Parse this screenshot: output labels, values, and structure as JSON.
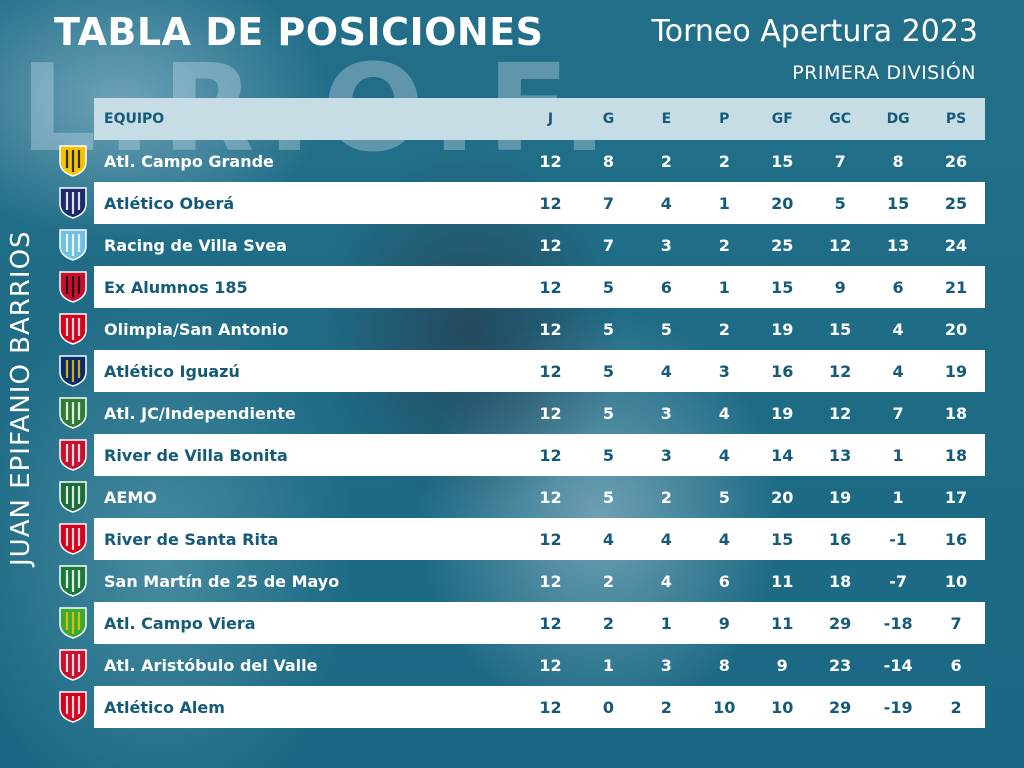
{
  "header": {
    "title": "TABLA DE POSICIONES",
    "tournament": "Torneo Apertura 2023",
    "division": "PRIMERA DIVISIÓN",
    "side_name": "JUAN EPIFANIO BARRIOS",
    "background_text": "L.R.O.F."
  },
  "columns": [
    "EQUIPO",
    "J",
    "G",
    "E",
    "P",
    "GF",
    "GC",
    "DG",
    "PS"
  ],
  "rows": [
    {
      "team": "Atl. Campo Grande",
      "J": "12",
      "G": "8",
      "E": "2",
      "P": "2",
      "GF": "15",
      "GC": "7",
      "DG": "8",
      "PS": "26",
      "crest_colors": [
        "#f2c500",
        "#111111"
      ],
      "crest_icon": "shield-icon"
    },
    {
      "team": "Atlético Oberá",
      "J": "12",
      "G": "7",
      "E": "4",
      "P": "1",
      "GF": "20",
      "GC": "5",
      "DG": "15",
      "PS": "25",
      "crest_colors": [
        "#1a2a6c",
        "#ffffff"
      ],
      "crest_icon": "shield-icon"
    },
    {
      "team": "Racing de Villa Svea",
      "J": "12",
      "G": "7",
      "E": "3",
      "P": "2",
      "GF": "25",
      "GC": "12",
      "DG": "13",
      "PS": "24",
      "crest_colors": [
        "#6ec1e4",
        "#ffffff"
      ],
      "crest_icon": "shield-icon"
    },
    {
      "team": "Ex Alumnos 185",
      "J": "12",
      "G": "5",
      "E": "6",
      "P": "1",
      "GF": "15",
      "GC": "9",
      "DG": "6",
      "PS": "21",
      "crest_colors": [
        "#c8102e",
        "#111111"
      ],
      "crest_icon": "shield-icon"
    },
    {
      "team": "Olimpia/San Antonio",
      "J": "12",
      "G": "5",
      "E": "5",
      "P": "2",
      "GF": "19",
      "GC": "15",
      "DG": "4",
      "PS": "20",
      "crest_colors": [
        "#d6001c",
        "#ffffff"
      ],
      "crest_icon": "shield-icon"
    },
    {
      "team": "Atlético Iguazú",
      "J": "12",
      "G": "5",
      "E": "4",
      "P": "3",
      "GF": "16",
      "GC": "12",
      "DG": "4",
      "PS": "19",
      "crest_colors": [
        "#0a2a6b",
        "#f2c500"
      ],
      "crest_icon": "shield-icon"
    },
    {
      "team": "Atl. JC/Independiente",
      "J": "12",
      "G": "5",
      "E": "3",
      "P": "4",
      "GF": "19",
      "GC": "12",
      "DG": "7",
      "PS": "18",
      "crest_colors": [
        "#2e7d32",
        "#ffffff"
      ],
      "crest_icon": "shield-icon"
    },
    {
      "team": "River de Villa Bonita",
      "J": "12",
      "G": "5",
      "E": "3",
      "P": "4",
      "GF": "14",
      "GC": "13",
      "DG": "1",
      "PS": "18",
      "crest_colors": [
        "#c8102e",
        "#ffffff"
      ],
      "crest_icon": "shield-icon"
    },
    {
      "team": "AEMO",
      "J": "12",
      "G": "5",
      "E": "2",
      "P": "5",
      "GF": "20",
      "GC": "19",
      "DG": "1",
      "PS": "17",
      "crest_colors": [
        "#1b6e3a",
        "#ffffff"
      ],
      "crest_icon": "shield-icon"
    },
    {
      "team": "River de Santa Rita",
      "J": "12",
      "G": "4",
      "E": "4",
      "P": "4",
      "GF": "15",
      "GC": "16",
      "DG": "-1",
      "PS": "16",
      "crest_colors": [
        "#d6001c",
        "#ffffff"
      ],
      "crest_icon": "shield-icon"
    },
    {
      "team": "San Martín de 25 de Mayo",
      "J": "12",
      "G": "2",
      "E": "4",
      "P": "6",
      "GF": "11",
      "GC": "18",
      "DG": "-7",
      "PS": "10",
      "crest_colors": [
        "#1b7a3a",
        "#ffffff"
      ],
      "crest_icon": "shield-icon"
    },
    {
      "team": "Atl. Campo Viera",
      "J": "12",
      "G": "2",
      "E": "1",
      "P": "9",
      "GF": "11",
      "GC": "29",
      "DG": "-18",
      "PS": "7",
      "crest_colors": [
        "#3aaa35",
        "#f2c500"
      ],
      "crest_icon": "shield-icon"
    },
    {
      "team": "Atl. Aristóbulo del Valle",
      "J": "12",
      "G": "1",
      "E": "3",
      "P": "8",
      "GF": "9",
      "GC": "23",
      "DG": "-14",
      "PS": "6",
      "crest_colors": [
        "#c8102e",
        "#ffffff"
      ],
      "crest_icon": "shield-icon"
    },
    {
      "team": "Atlético Alem",
      "J": "12",
      "G": "0",
      "E": "2",
      "P": "10",
      "GF": "10",
      "GC": "29",
      "DG": "-19",
      "PS": "2",
      "crest_colors": [
        "#d6001c",
        "#ffffff"
      ],
      "crest_icon": "shield-icon"
    }
  ],
  "colors": {
    "background": "#1d6f8d",
    "header_bg": "#c7dde6",
    "header_text": "#155a78",
    "light_row_bg": "#ffffff",
    "light_row_text": "#155a78",
    "dark_row_text": "#ffffff"
  }
}
